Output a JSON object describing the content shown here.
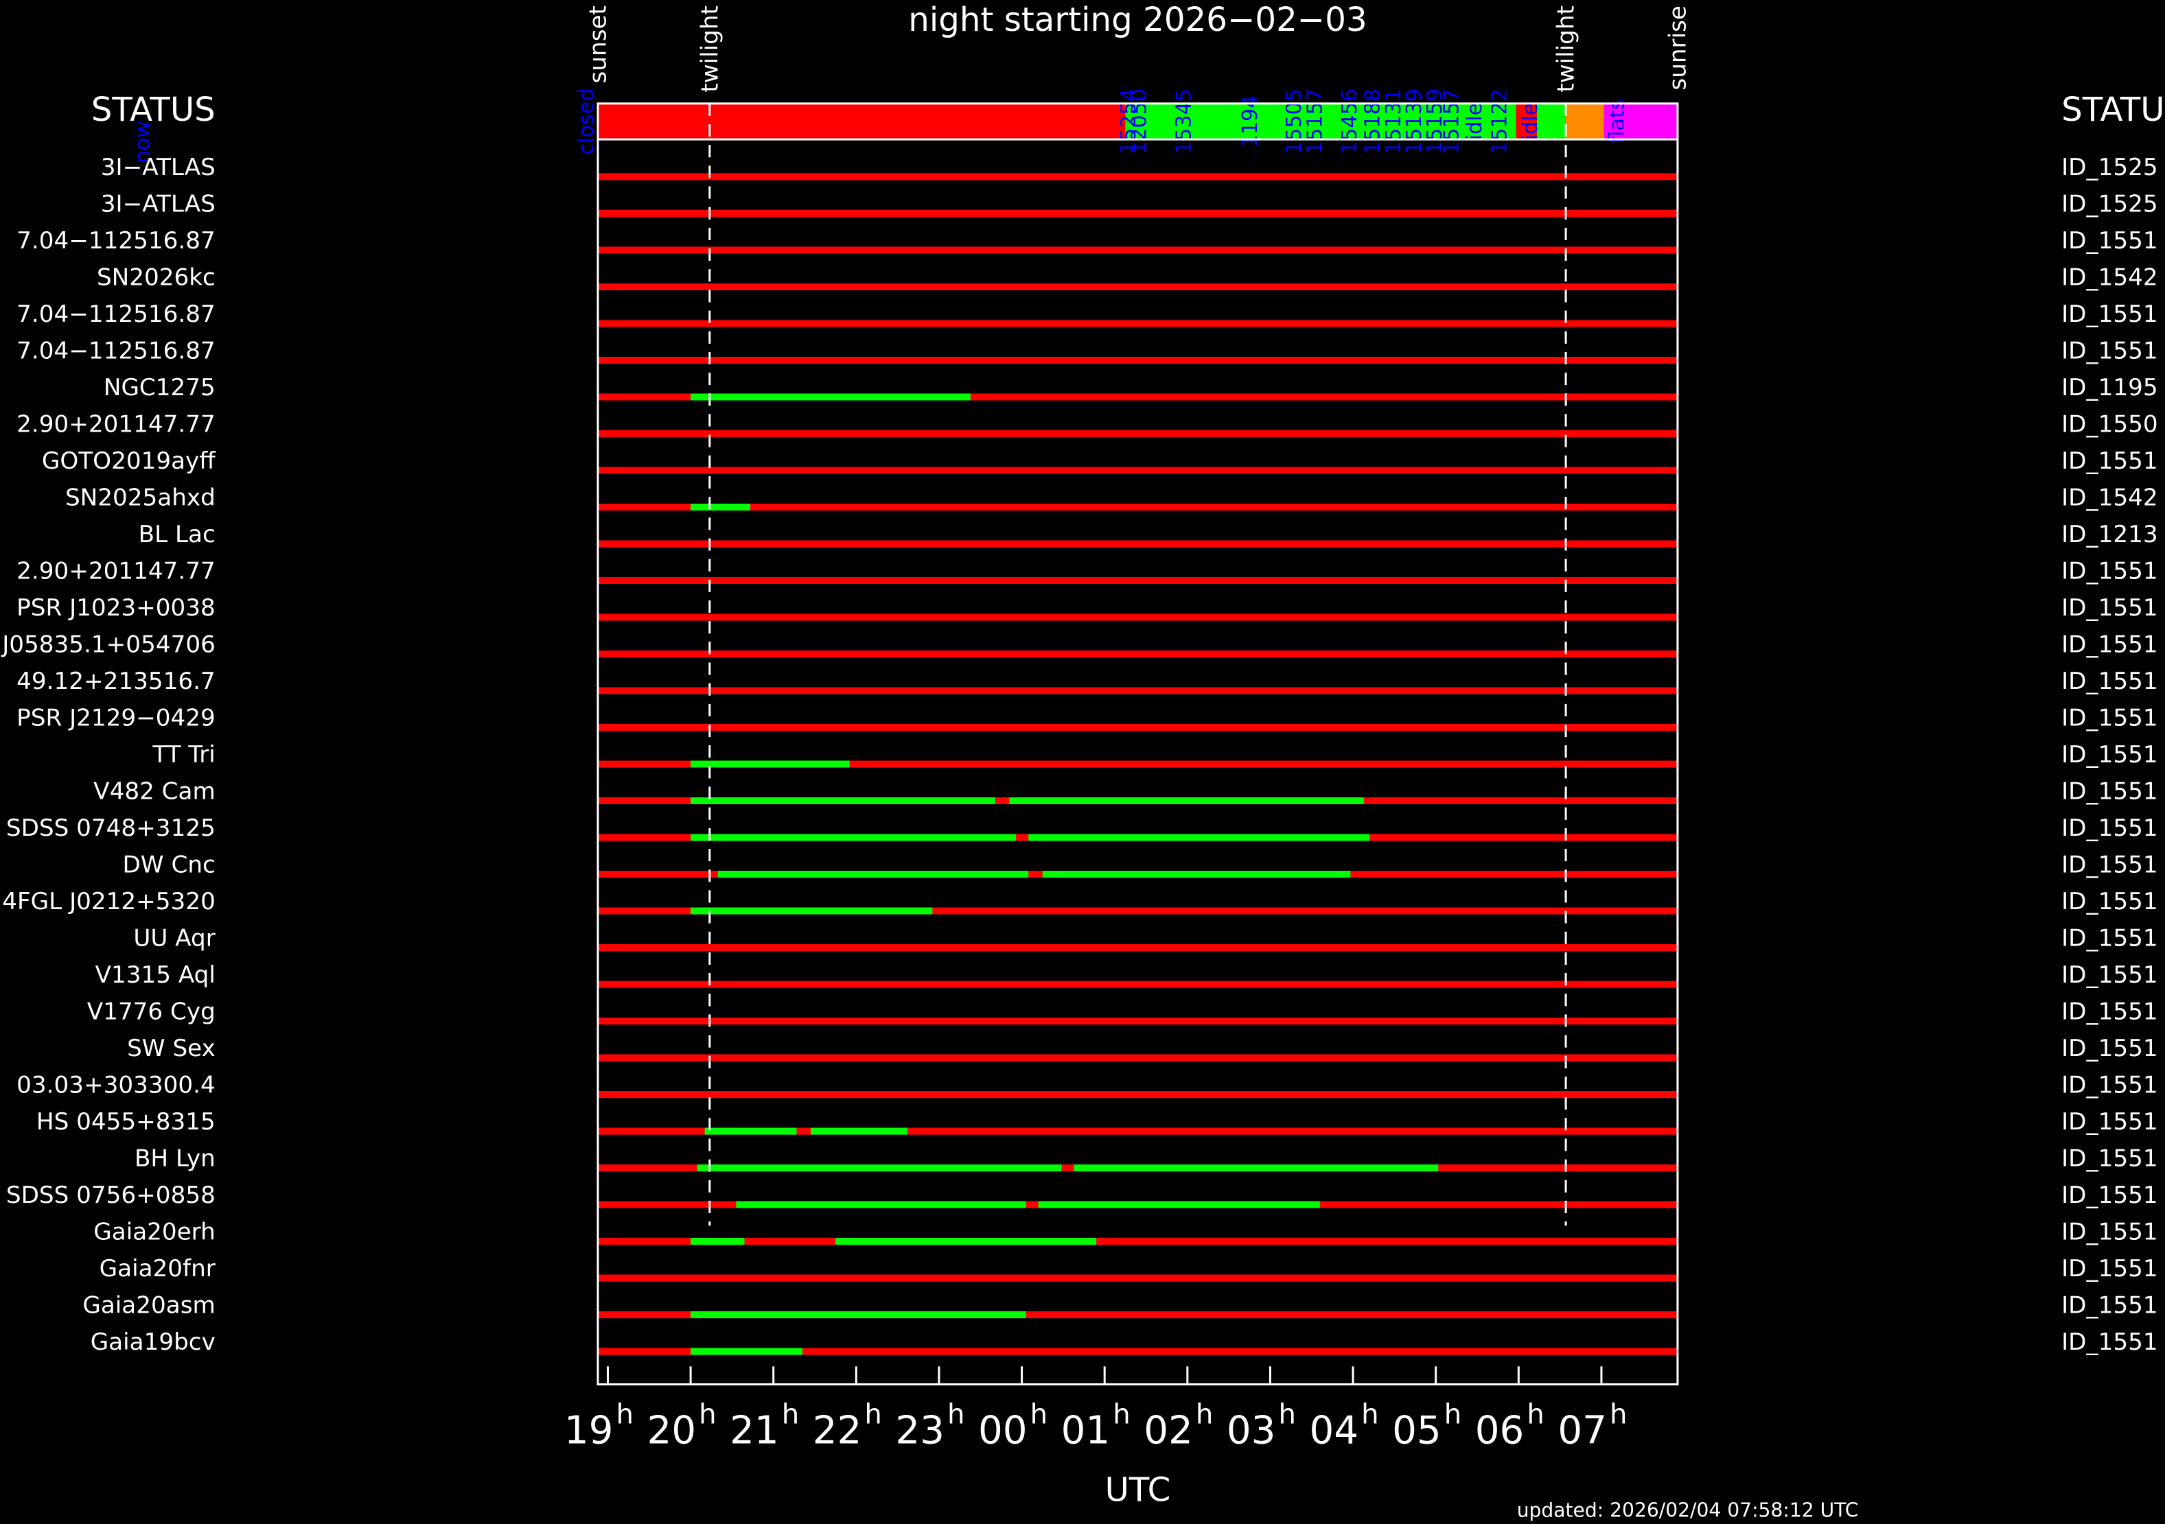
{
  "chart_data": {
    "type": "timeline",
    "title": "night starting 2026−02−03",
    "status_label": "STATUS",
    "xlabel": "UTC",
    "updated": "updated: 2026/02/04 07:58:12 UTC",
    "now_label": "now",
    "hour_suffix": "h",
    "xlim": [
      18.88,
      31.92
    ],
    "xticks": [
      {
        "value": 19,
        "label": "19"
      },
      {
        "value": 20,
        "label": "20"
      },
      {
        "value": 21,
        "label": "21"
      },
      {
        "value": 22,
        "label": "22"
      },
      {
        "value": 23,
        "label": "23"
      },
      {
        "value": 24,
        "label": "00"
      },
      {
        "value": 25,
        "label": "01"
      },
      {
        "value": 26,
        "label": "02"
      },
      {
        "value": 27,
        "label": "03"
      },
      {
        "value": 28,
        "label": "04"
      },
      {
        "value": 29,
        "label": "05"
      },
      {
        "value": 30,
        "label": "06"
      },
      {
        "value": 31,
        "label": "07"
      }
    ],
    "events": [
      {
        "name": "sunset",
        "time": 18.88
      },
      {
        "name": "twilight",
        "time": 20.23
      },
      {
        "name": "twilight",
        "time": 30.57
      },
      {
        "name": "sunrise",
        "time": 31.92
      }
    ],
    "status_segments": [
      {
        "start": 18.88,
        "end": 25.25,
        "color": "#ff0000"
      },
      {
        "start": 25.25,
        "end": 29.97,
        "color": "#00ff00"
      },
      {
        "start": 29.97,
        "end": 30.22,
        "color": "#ff0000"
      },
      {
        "start": 30.22,
        "end": 30.57,
        "color": "#00ff00"
      },
      {
        "start": 30.57,
        "end": 31.03,
        "color": "#ff8c00"
      },
      {
        "start": 31.03,
        "end": 31.92,
        "color": "#ff00ff"
      }
    ],
    "status_labels": [
      {
        "time": 18.75,
        "label": "closed"
      },
      {
        "time": 25.3,
        "label": "15254"
      },
      {
        "time": 25.43,
        "label": "12050"
      },
      {
        "time": 25.97,
        "label": "15345"
      },
      {
        "time": 26.77,
        "label": "1194"
      },
      {
        "time": 27.3,
        "label": "15505"
      },
      {
        "time": 27.55,
        "label": "15157"
      },
      {
        "time": 27.97,
        "label": "15456"
      },
      {
        "time": 28.25,
        "label": "15188"
      },
      {
        "time": 28.5,
        "label": "15131"
      },
      {
        "time": 28.75,
        "label": "15139"
      },
      {
        "time": 29.0,
        "label": "15159"
      },
      {
        "time": 29.2,
        "label": "15157"
      },
      {
        "time": 29.48,
        "label": "idle"
      },
      {
        "time": 29.78,
        "label": "15122"
      },
      {
        "time": 30.15,
        "label": "idle"
      },
      {
        "time": 31.2,
        "label": "flats"
      }
    ],
    "rows": [
      {
        "name": "3I−ATLAS",
        "id": "ID_1525",
        "visible": []
      },
      {
        "name": "3I−ATLAS",
        "id": "ID_1525",
        "visible": []
      },
      {
        "name": "7.04−112516.87",
        "id": "ID_1551",
        "visible": []
      },
      {
        "name": "SN2026kc",
        "id": "ID_1542",
        "visible": []
      },
      {
        "name": "7.04−112516.87",
        "id": "ID_1551",
        "visible": []
      },
      {
        "name": "7.04−112516.87",
        "id": "ID_1551",
        "visible": []
      },
      {
        "name": "NGC1275",
        "id": "ID_1195",
        "visible": [
          [
            20.0,
            23.38
          ]
        ]
      },
      {
        "name": "2.90+201147.77",
        "id": "ID_1550",
        "visible": []
      },
      {
        "name": "GOTO2019ayff",
        "id": "ID_1551",
        "visible": []
      },
      {
        "name": "SN2025ahxd",
        "id": "ID_1542",
        "visible": [
          [
            20.0,
            20.72
          ]
        ]
      },
      {
        "name": "BL Lac",
        "id": "ID_1213",
        "visible": []
      },
      {
        "name": "2.90+201147.77",
        "id": "ID_1551",
        "visible": []
      },
      {
        "name": "PSR J1023+0038",
        "id": "ID_1551",
        "visible": []
      },
      {
        "name": "J05835.1+054706",
        "id": "ID_1551",
        "visible": []
      },
      {
        "name": "49.12+213516.7",
        "id": "ID_1551",
        "visible": []
      },
      {
        "name": "PSR J2129−0429",
        "id": "ID_1551",
        "visible": []
      },
      {
        "name": "TT Tri",
        "id": "ID_1551",
        "visible": [
          [
            20.0,
            21.92
          ]
        ]
      },
      {
        "name": "V482 Cam",
        "id": "ID_1551",
        "visible": [
          [
            20.0,
            23.68
          ],
          [
            23.85,
            28.13
          ]
        ]
      },
      {
        "name": "SDSS 0748+3125",
        "id": "ID_1551",
        "visible": [
          [
            20.0,
            23.93
          ],
          [
            24.08,
            28.2
          ]
        ]
      },
      {
        "name": "DW Cnc",
        "id": "ID_1551",
        "visible": [
          [
            20.33,
            24.08
          ],
          [
            24.25,
            27.97
          ]
        ]
      },
      {
        "name": "4FGL J0212+5320",
        "id": "ID_1551",
        "visible": [
          [
            20.0,
            22.92
          ]
        ]
      },
      {
        "name": "UU Aqr",
        "id": "ID_1551",
        "visible": []
      },
      {
        "name": "V1315 Aql",
        "id": "ID_1551",
        "visible": []
      },
      {
        "name": "V1776 Cyg",
        "id": "ID_1551",
        "visible": []
      },
      {
        "name": "SW Sex",
        "id": "ID_1551",
        "visible": []
      },
      {
        "name": "03.03+303300.4",
        "id": "ID_1551",
        "visible": []
      },
      {
        "name": "HS 0455+8315",
        "id": "ID_1551",
        "visible": [
          [
            20.17,
            21.28
          ],
          [
            21.45,
            22.62
          ]
        ]
      },
      {
        "name": "BH Lyn",
        "id": "ID_1551",
        "visible": [
          [
            20.08,
            24.48
          ],
          [
            24.63,
            29.03
          ]
        ]
      },
      {
        "name": "SDSS 0756+0858",
        "id": "ID_1551",
        "visible": [
          [
            20.55,
            24.05
          ],
          [
            24.2,
            27.6
          ]
        ]
      },
      {
        "name": "Gaia20erh",
        "id": "ID_1551",
        "visible": [
          [
            20.0,
            20.65
          ],
          [
            21.75,
            24.9
          ]
        ]
      },
      {
        "name": "Gaia20fnr",
        "id": "ID_1551",
        "visible": []
      },
      {
        "name": "Gaia20asm",
        "id": "ID_1551",
        "visible": [
          [
            20.0,
            24.05
          ]
        ]
      },
      {
        "name": "Gaia19bcv",
        "id": "ID_1551",
        "visible": [
          [
            20.0,
            21.35
          ]
        ]
      }
    ],
    "colors": {
      "unavailable": "#ff0000",
      "visible": "#00ff00",
      "twilight_line": "#ffffff",
      "status_text": "#0000ff"
    }
  }
}
